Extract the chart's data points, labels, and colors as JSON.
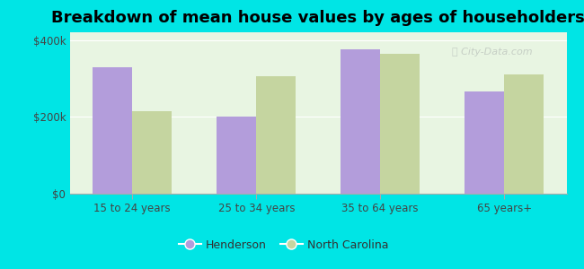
{
  "title": "Breakdown of mean house values by ages of householders",
  "categories": [
    "15 to 24 years",
    "25 to 34 years",
    "35 to 64 years",
    "65 years+"
  ],
  "henderson_values": [
    330000,
    200000,
    375000,
    265000
  ],
  "nc_values": [
    215000,
    305000,
    365000,
    310000
  ],
  "henderson_color": "#b39ddb",
  "nc_color": "#c5d5a0",
  "background_color": "#00e5e5",
  "plot_bg_color": "#e8f5e2",
  "ylim": [
    0,
    420000
  ],
  "yticks": [
    0,
    200000,
    400000
  ],
  "ytick_labels": [
    "$0",
    "$200k",
    "$400k"
  ],
  "legend_henderson": "Henderson",
  "legend_nc": "North Carolina",
  "bar_width": 0.32,
  "title_fontsize": 13,
  "tick_fontsize": 8.5,
  "legend_fontsize": 9
}
